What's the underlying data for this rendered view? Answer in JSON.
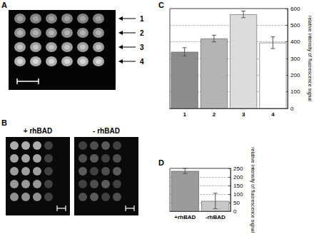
{
  "panels": {
    "A": {
      "label": "A",
      "rows": [
        "1",
        "2",
        "3",
        "4"
      ]
    },
    "B": {
      "label": "B",
      "images": [
        "+ rhBAD",
        "- rhBAD"
      ]
    }
  },
  "chart_data": [
    {
      "label": "C",
      "type": "bar",
      "categories": [
        "1",
        "2",
        "3",
        "4"
      ],
      "values": [
        340,
        420,
        565,
        395
      ],
      "errors": [
        25,
        20,
        20,
        35
      ],
      "colors": [
        "#8c8c8c",
        "#b4b4b4",
        "#dcdcdc",
        "#ffffff"
      ],
      "ylim": [
        0,
        600
      ],
      "yticks": [
        0,
        100,
        200,
        300,
        400,
        500,
        600
      ],
      "y_label": "relative intensity of fluorescence signal",
      "grid": true
    },
    {
      "label": "D",
      "type": "bar",
      "categories": [
        "+rhBAD",
        "-rhBAD"
      ],
      "values": [
        235,
        60
      ],
      "errors": [
        15,
        45
      ],
      "colors": [
        "#9a9a9a",
        "#c8c8c8"
      ],
      "ylim": [
        0,
        250
      ],
      "yticks": [
        0,
        50,
        100,
        150,
        200,
        250
      ],
      "y_label": "relative intensity of fluorescence signal",
      "grid": true
    }
  ]
}
